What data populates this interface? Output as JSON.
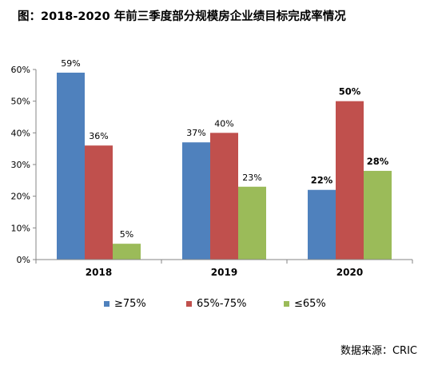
{
  "title": "图：2018-2020 年前三季度部分规模房企业绩目标完成率情况",
  "source": "数据来源：CRIC",
  "colors": {
    "series1": "#4F81BD",
    "series2": "#C0504D",
    "series3": "#9BBB59",
    "axis": "#868686"
  },
  "chart_data": {
    "type": "bar",
    "categories": [
      "2018",
      "2019",
      "2020"
    ],
    "series": [
      {
        "name": "≥75%",
        "values": [
          59,
          37,
          22
        ],
        "labels": [
          "59%",
          "37%",
          "22%"
        ]
      },
      {
        "name": "65%-75%",
        "values": [
          36,
          40,
          50
        ],
        "labels": [
          "36%",
          "40%",
          "50%"
        ]
      },
      {
        "name": "≤65%",
        "values": [
          5,
          23,
          28
        ],
        "labels": [
          "5%",
          "23%",
          "28%"
        ]
      }
    ],
    "bold_label_categories": [
      "2020"
    ],
    "yticks": [
      "0%",
      "10%",
      "20%",
      "30%",
      "40%",
      "50%",
      "60%"
    ],
    "ylim": [
      0,
      60
    ],
    "legend_position": "bottom"
  }
}
